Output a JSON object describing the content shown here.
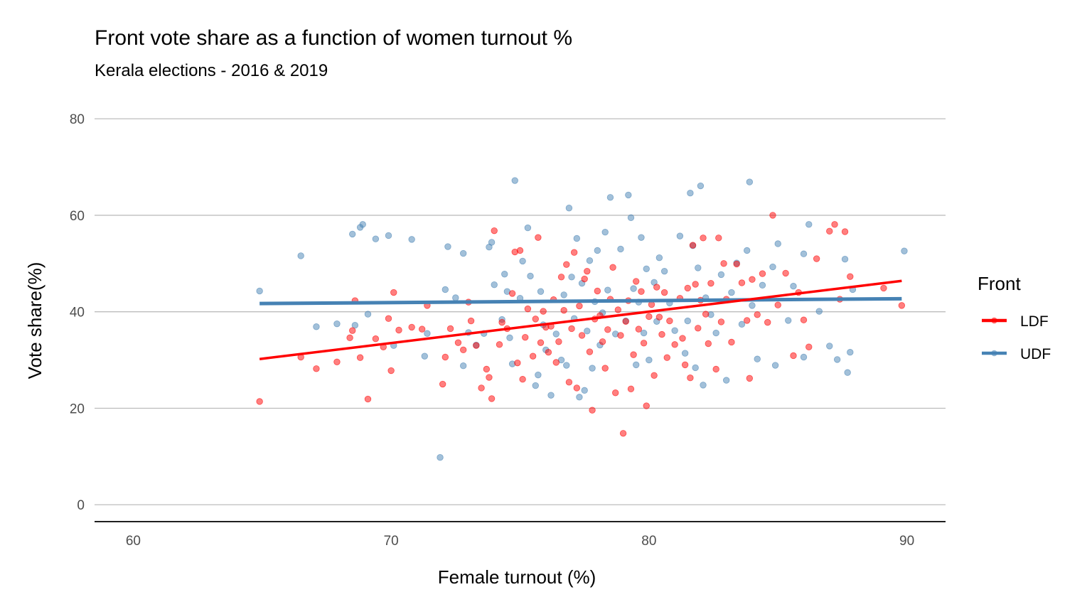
{
  "chart_data": {
    "type": "scatter",
    "title": "Front vote share as a function of women turnout %",
    "subtitle": "Kerala elections - 2016 & 2019",
    "xlabel": "Female turnout (%)",
    "ylabel": "Vote share(%)",
    "xlim": [
      58.5,
      91.5
    ],
    "ylim": [
      -3.5,
      84
    ],
    "x_ticks": [
      60,
      70,
      80,
      90
    ],
    "y_ticks": [
      0,
      20,
      40,
      60,
      80
    ],
    "grid": "horizontal major lines",
    "legend": {
      "title": "Front",
      "position": "right",
      "items": [
        "LDF",
        "UDF"
      ]
    },
    "series": [
      {
        "name": "LDF",
        "color": "#ff0000",
        "trend": {
          "x": [
            64.9,
            89.8
          ],
          "y": [
            30.2,
            46.4
          ]
        },
        "points": [
          [
            64.9,
            21.4
          ],
          [
            66.5,
            30.6
          ],
          [
            67.1,
            28.2
          ],
          [
            67.9,
            29.6
          ],
          [
            68.4,
            34.6
          ],
          [
            68.5,
            36.1
          ],
          [
            68.6,
            42.3
          ],
          [
            68.8,
            30.5
          ],
          [
            69.1,
            21.9
          ],
          [
            69.4,
            34.4
          ],
          [
            69.7,
            32.7
          ],
          [
            69.9,
            38.6
          ],
          [
            70.0,
            27.8
          ],
          [
            70.1,
            44.0
          ],
          [
            70.3,
            36.2
          ],
          [
            70.8,
            36.8
          ],
          [
            71.2,
            36.4
          ],
          [
            71.4,
            41.3
          ],
          [
            72.0,
            25.0
          ],
          [
            72.1,
            30.6
          ],
          [
            72.3,
            36.5
          ],
          [
            72.6,
            33.6
          ],
          [
            72.8,
            32.1
          ],
          [
            73.0,
            42.0
          ],
          [
            73.1,
            38.1
          ],
          [
            73.3,
            33.0
          ],
          [
            73.5,
            24.2
          ],
          [
            73.7,
            28.1
          ],
          [
            73.8,
            26.4
          ],
          [
            73.9,
            22.0
          ],
          [
            74.0,
            56.8
          ],
          [
            74.2,
            33.2
          ],
          [
            74.3,
            37.8
          ],
          [
            74.5,
            36.5
          ],
          [
            74.7,
            43.8
          ],
          [
            74.8,
            52.4
          ],
          [
            74.9,
            29.4
          ],
          [
            75.0,
            52.7
          ],
          [
            75.1,
            26.0
          ],
          [
            75.2,
            34.7
          ],
          [
            75.3,
            40.6
          ],
          [
            75.5,
            30.8
          ],
          [
            75.6,
            38.5
          ],
          [
            75.7,
            55.4
          ],
          [
            75.8,
            33.6
          ],
          [
            75.9,
            40.1
          ],
          [
            76.0,
            36.8
          ],
          [
            76.1,
            31.6
          ],
          [
            76.2,
            37.0
          ],
          [
            76.3,
            42.5
          ],
          [
            76.4,
            29.5
          ],
          [
            76.5,
            33.8
          ],
          [
            76.6,
            47.2
          ],
          [
            76.7,
            40.3
          ],
          [
            76.8,
            49.8
          ],
          [
            76.9,
            25.4
          ],
          [
            77.0,
            36.5
          ],
          [
            77.1,
            52.3
          ],
          [
            77.2,
            24.2
          ],
          [
            77.3,
            41.2
          ],
          [
            77.4,
            35.1
          ],
          [
            77.5,
            46.8
          ],
          [
            77.6,
            48.4
          ],
          [
            77.7,
            31.7
          ],
          [
            77.8,
            19.6
          ],
          [
            77.9,
            38.5
          ],
          [
            78.0,
            44.3
          ],
          [
            78.1,
            39.2
          ],
          [
            78.2,
            33.8
          ],
          [
            78.3,
            28.3
          ],
          [
            78.4,
            36.3
          ],
          [
            78.5,
            42.6
          ],
          [
            78.6,
            49.2
          ],
          [
            78.7,
            23.2
          ],
          [
            78.8,
            40.4
          ],
          [
            78.9,
            35.1
          ],
          [
            79.0,
            14.8
          ],
          [
            79.1,
            38.0
          ],
          [
            79.2,
            42.3
          ],
          [
            79.3,
            24.0
          ],
          [
            79.4,
            31.1
          ],
          [
            79.5,
            46.3
          ],
          [
            79.6,
            36.4
          ],
          [
            79.7,
            44.2
          ],
          [
            79.8,
            33.5
          ],
          [
            79.9,
            20.5
          ],
          [
            80.0,
            39.0
          ],
          [
            80.1,
            41.5
          ],
          [
            80.2,
            26.8
          ],
          [
            80.3,
            45.1
          ],
          [
            80.4,
            38.9
          ],
          [
            80.5,
            35.3
          ],
          [
            80.6,
            44.0
          ],
          [
            80.7,
            30.5
          ],
          [
            80.8,
            38.1
          ],
          [
            81.0,
            33.2
          ],
          [
            81.2,
            42.8
          ],
          [
            81.3,
            34.5
          ],
          [
            81.4,
            29.0
          ],
          [
            81.5,
            44.9
          ],
          [
            81.6,
            26.3
          ],
          [
            81.7,
            53.8
          ],
          [
            81.8,
            45.7
          ],
          [
            81.9,
            36.6
          ],
          [
            82.0,
            42.4
          ],
          [
            82.1,
            55.3
          ],
          [
            82.2,
            39.5
          ],
          [
            82.3,
            33.4
          ],
          [
            82.4,
            45.9
          ],
          [
            82.6,
            28.1
          ],
          [
            82.7,
            55.3
          ],
          [
            82.8,
            37.9
          ],
          [
            82.9,
            50.0
          ],
          [
            83.0,
            42.6
          ],
          [
            83.2,
            33.7
          ],
          [
            83.4,
            49.9
          ],
          [
            83.6,
            46.0
          ],
          [
            83.8,
            38.2
          ],
          [
            83.9,
            26.2
          ],
          [
            84.0,
            46.7
          ],
          [
            84.2,
            39.4
          ],
          [
            84.4,
            47.9
          ],
          [
            84.6,
            37.8
          ],
          [
            84.8,
            60.0
          ],
          [
            85.0,
            41.4
          ],
          [
            85.3,
            48.0
          ],
          [
            85.6,
            30.9
          ],
          [
            85.8,
            44.0
          ],
          [
            86.0,
            38.3
          ],
          [
            86.2,
            32.7
          ],
          [
            86.5,
            51.0
          ],
          [
            87.0,
            56.7
          ],
          [
            87.2,
            58.1
          ],
          [
            87.4,
            42.6
          ],
          [
            87.6,
            56.6
          ],
          [
            87.8,
            47.3
          ],
          [
            89.1,
            44.9
          ],
          [
            89.8,
            41.3
          ]
        ]
      },
      {
        "name": "UDF",
        "color": "#4682b4",
        "trend": {
          "x": [
            64.9,
            89.8
          ],
          "y": [
            41.7,
            42.7
          ]
        },
        "points": [
          [
            64.9,
            44.3
          ],
          [
            66.5,
            51.6
          ],
          [
            67.1,
            36.9
          ],
          [
            67.9,
            37.5
          ],
          [
            68.5,
            56.1
          ],
          [
            68.6,
            37.2
          ],
          [
            68.8,
            57.5
          ],
          [
            68.9,
            58.1
          ],
          [
            69.1,
            39.5
          ],
          [
            69.4,
            55.1
          ],
          [
            69.9,
            55.8
          ],
          [
            70.1,
            33.0
          ],
          [
            70.8,
            55.0
          ],
          [
            71.3,
            30.8
          ],
          [
            71.4,
            35.5
          ],
          [
            71.9,
            9.8
          ],
          [
            72.1,
            44.6
          ],
          [
            72.2,
            53.5
          ],
          [
            72.5,
            42.9
          ],
          [
            72.8,
            52.1
          ],
          [
            72.8,
            28.8
          ],
          [
            73.0,
            35.7
          ],
          [
            73.3,
            33.1
          ],
          [
            73.6,
            35.5
          ],
          [
            73.8,
            53.4
          ],
          [
            73.9,
            54.4
          ],
          [
            74.0,
            45.6
          ],
          [
            74.3,
            38.4
          ],
          [
            74.4,
            47.8
          ],
          [
            74.5,
            44.2
          ],
          [
            74.6,
            34.6
          ],
          [
            74.7,
            29.2
          ],
          [
            74.8,
            67.2
          ],
          [
            75.0,
            42.8
          ],
          [
            75.1,
            50.5
          ],
          [
            75.3,
            57.4
          ],
          [
            75.4,
            47.4
          ],
          [
            75.6,
            24.7
          ],
          [
            75.7,
            26.9
          ],
          [
            75.8,
            44.2
          ],
          [
            75.9,
            37.3
          ],
          [
            76.0,
            32.1
          ],
          [
            76.2,
            22.7
          ],
          [
            76.4,
            35.4
          ],
          [
            76.6,
            30.0
          ],
          [
            76.7,
            43.5
          ],
          [
            76.8,
            28.9
          ],
          [
            76.9,
            61.5
          ],
          [
            77.0,
            47.2
          ],
          [
            77.1,
            38.6
          ],
          [
            77.2,
            55.2
          ],
          [
            77.3,
            22.3
          ],
          [
            77.4,
            45.9
          ],
          [
            77.5,
            23.7
          ],
          [
            77.6,
            36.0
          ],
          [
            77.7,
            50.6
          ],
          [
            77.8,
            28.3
          ],
          [
            77.9,
            42.1
          ],
          [
            78.0,
            52.7
          ],
          [
            78.1,
            33.1
          ],
          [
            78.2,
            39.8
          ],
          [
            78.3,
            56.5
          ],
          [
            78.4,
            44.5
          ],
          [
            78.5,
            63.7
          ],
          [
            78.7,
            35.4
          ],
          [
            78.9,
            53.0
          ],
          [
            79.1,
            38.1
          ],
          [
            79.2,
            64.2
          ],
          [
            79.3,
            59.5
          ],
          [
            79.4,
            44.8
          ],
          [
            79.5,
            29.0
          ],
          [
            79.6,
            42.0
          ],
          [
            79.7,
            55.4
          ],
          [
            79.8,
            35.6
          ],
          [
            79.9,
            48.9
          ],
          [
            80.0,
            30.0
          ],
          [
            80.2,
            46.1
          ],
          [
            80.3,
            38.0
          ],
          [
            80.4,
            51.2
          ],
          [
            80.6,
            48.4
          ],
          [
            80.8,
            41.8
          ],
          [
            81.0,
            36.1
          ],
          [
            81.2,
            55.7
          ],
          [
            81.4,
            31.4
          ],
          [
            81.5,
            38.1
          ],
          [
            81.6,
            64.6
          ],
          [
            81.7,
            53.7
          ],
          [
            81.8,
            28.4
          ],
          [
            81.9,
            49.1
          ],
          [
            82.0,
            66.1
          ],
          [
            82.1,
            24.8
          ],
          [
            82.2,
            42.9
          ],
          [
            82.4,
            39.4
          ],
          [
            82.6,
            35.6
          ],
          [
            82.8,
            47.7
          ],
          [
            83.0,
            25.8
          ],
          [
            83.2,
            44.0
          ],
          [
            83.4,
            50.1
          ],
          [
            83.6,
            37.4
          ],
          [
            83.8,
            52.7
          ],
          [
            83.9,
            66.9
          ],
          [
            84.0,
            41.3
          ],
          [
            84.2,
            30.2
          ],
          [
            84.4,
            45.5
          ],
          [
            84.8,
            49.3
          ],
          [
            84.9,
            28.9
          ],
          [
            85.0,
            54.1
          ],
          [
            85.4,
            38.2
          ],
          [
            85.6,
            45.3
          ],
          [
            86.0,
            52.0
          ],
          [
            86.2,
            58.1
          ],
          [
            86.0,
            30.6
          ],
          [
            86.6,
            40.1
          ],
          [
            87.0,
            32.9
          ],
          [
            87.3,
            30.1
          ],
          [
            87.6,
            50.9
          ],
          [
            87.7,
            27.4
          ],
          [
            87.8,
            31.6
          ],
          [
            87.9,
            44.6
          ],
          [
            89.9,
            52.6
          ]
        ]
      }
    ]
  }
}
